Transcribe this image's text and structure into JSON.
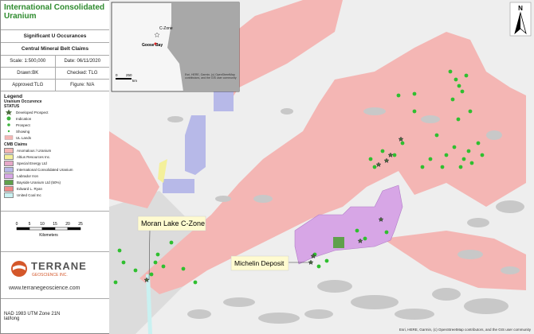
{
  "panel": {
    "title": "International Consolidated Uranium",
    "subtitle": "Significant U Occurances",
    "claims_title": "Central Mineral Belt Claims",
    "info": [
      [
        "Scale: 1:500,000",
        "Date: 06/11/2020"
      ],
      [
        "Drawn:BK",
        "Checked: TLG"
      ],
      [
        "Approved:TLG",
        "Figure: N/A"
      ]
    ],
    "legend": {
      "title": "Legend",
      "group1": "Uranium Occurence",
      "status": "STATUS",
      "items": [
        "Developed Prospect",
        "Indication",
        "Prospect",
        "Showing",
        "UL Lands"
      ],
      "group2": "CMB Claims",
      "claims": [
        "Anomalous / Uranium",
        "Altius Resources Inc.",
        "Special Energy Ltd",
        "International Consolidated Uranium",
        "Labrador Iron",
        "Bayside Uranium Ltd (50%)",
        "Edward L. Ryan",
        "United Coal Inc"
      ]
    },
    "scale_ticks": [
      0,
      5,
      10,
      15,
      20,
      25
    ],
    "scale_unit": "Kilometers",
    "logo": {
      "name": "TERRANE",
      "sub": "GEOSCIENCE INC."
    },
    "website": "www.terranegeoscience.com",
    "projection": "NAD 1983 UTM Zone 21N",
    "coords": "lat/long"
  },
  "map": {
    "labels": [
      "Moran Lake C-Zone",
      "Michelin Deposit"
    ],
    "inset": {
      "labels": [
        "C-Zone",
        "Goose Bay"
      ],
      "scale": [
        "0",
        "250",
        "km"
      ],
      "attribution": "Esri, HERE, Garmin, (c) OpenStreetMap contributors, and the GIS user community"
    },
    "north": "N",
    "attribution": "Esri, HERE, Garmin, (c) OpenStreetMap contributors, and the GIS user community"
  }
}
